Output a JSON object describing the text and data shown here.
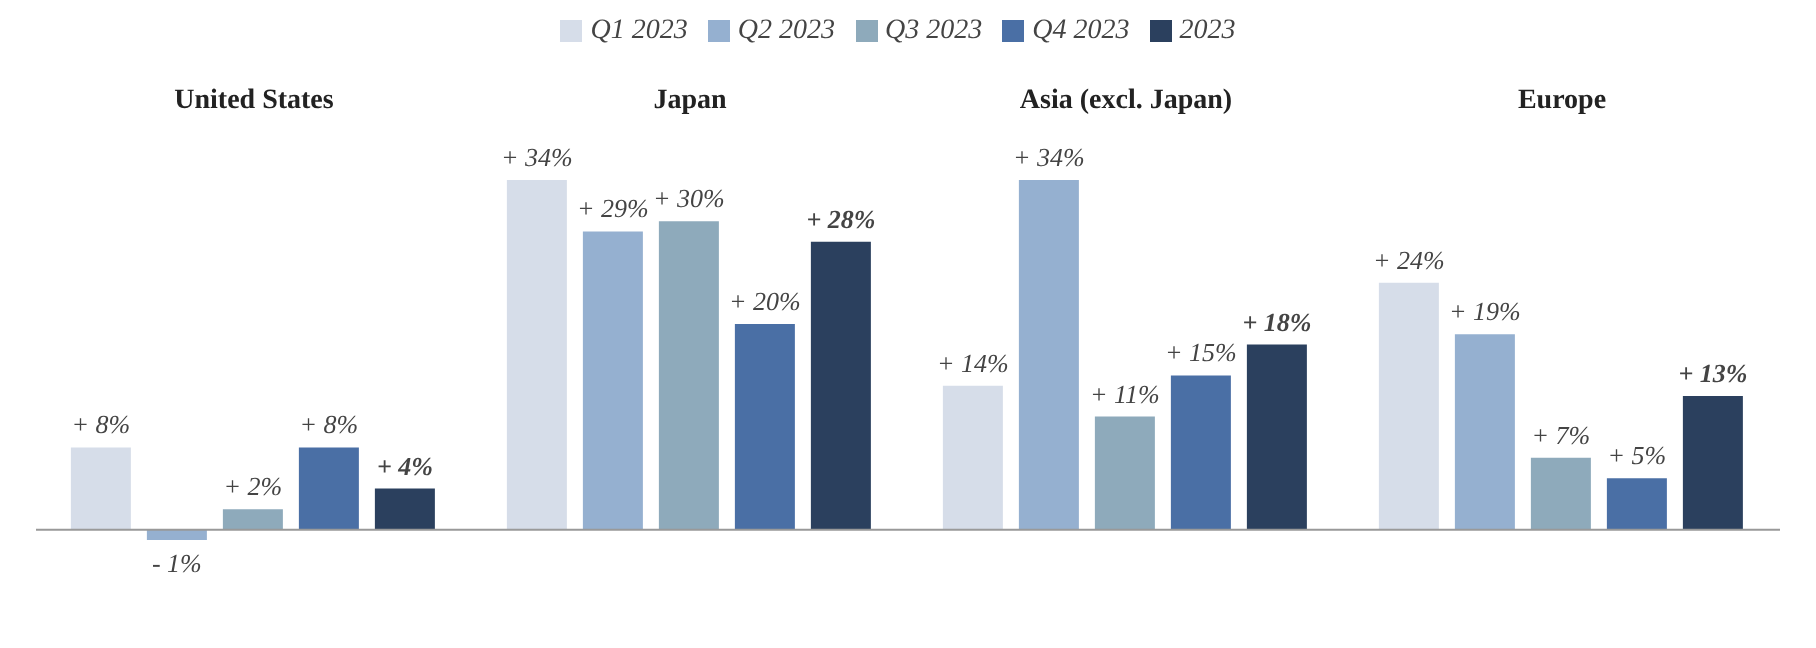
{
  "chart_data": {
    "type": "bar",
    "categories": [
      "United States",
      "Japan",
      "Asia (excl. Japan)",
      "Europe"
    ],
    "series": [
      {
        "name": "Q1 2023",
        "color": "#d6dde9",
        "values": [
          8,
          34,
          14,
          24
        ],
        "value_labels": [
          "+ 8%",
          "+ 34%",
          "+ 14%",
          "+ 24%"
        ]
      },
      {
        "name": "Q2 2023",
        "color": "#95b0d0",
        "values": [
          -1,
          29,
          34,
          19
        ],
        "value_labels": [
          "- 1%",
          "+ 29%",
          "+ 34%",
          "+ 19%"
        ]
      },
      {
        "name": "Q3 2023",
        "color": "#8eaabb",
        "values": [
          2,
          30,
          11,
          7
        ],
        "value_labels": [
          "+ 2%",
          "+ 30%",
          "+ 11%",
          "+ 7%"
        ]
      },
      {
        "name": "Q4 2023",
        "color": "#4a6fa5",
        "values": [
          8,
          20,
          15,
          5
        ],
        "value_labels": [
          "+ 8%",
          "+ 20%",
          "+ 15%",
          "+ 5%"
        ]
      },
      {
        "name": "2023",
        "color": "#2b405e",
        "values": [
          4,
          28,
          18,
          13
        ],
        "value_labels": [
          "+ 4%",
          "+ 28%",
          "+ 18%",
          "+ 13%"
        ]
      }
    ],
    "tick_labels": "x",
    "grid": false,
    "legend": "top"
  }
}
